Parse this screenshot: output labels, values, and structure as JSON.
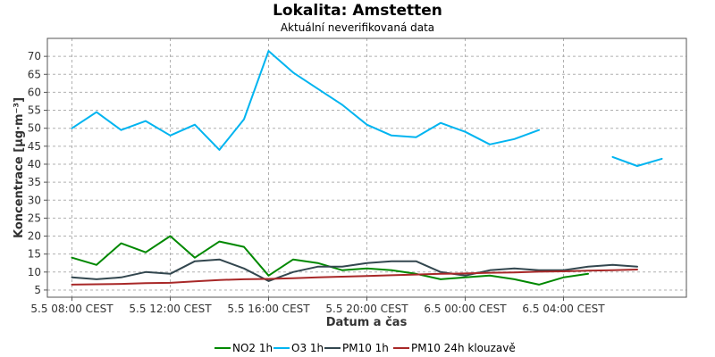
{
  "chart_data": {
    "type": "line",
    "title": "Lokalita: Amstetten",
    "subtitle": "Aktuální neverifikovaná data",
    "xlabel": "Datum a čas",
    "ylabel": "Koncentrace [µg·m⁻³]",
    "ylim": [
      3,
      75
    ],
    "yticks": [
      5,
      10,
      15,
      20,
      25,
      30,
      35,
      40,
      45,
      50,
      55,
      60,
      65,
      70
    ],
    "xlim": [
      "2023-05-05 07:00",
      "2023-05-06 09:00"
    ],
    "xticks": [
      {
        "x": "2023-05-05 08:00",
        "label": "5.5 08:00 CEST"
      },
      {
        "x": "2023-05-05 12:00",
        "label": "5.5 12:00 CEST"
      },
      {
        "x": "2023-05-05 16:00",
        "label": "5.5 16:00 CEST"
      },
      {
        "x": "2023-05-05 20:00",
        "label": "5.5 20:00 CEST"
      },
      {
        "x": "2023-05-06 00:00",
        "label": "6.5 00:00 CEST"
      },
      {
        "x": "2023-05-06 04:00",
        "label": "6.5 04:00 CEST"
      }
    ],
    "grid": true,
    "legend_position": "bottom",
    "x": [
      "2023-05-05 08:00",
      "2023-05-05 09:00",
      "2023-05-05 10:00",
      "2023-05-05 11:00",
      "2023-05-05 12:00",
      "2023-05-05 13:00",
      "2023-05-05 14:00",
      "2023-05-05 15:00",
      "2023-05-05 16:00",
      "2023-05-05 17:00",
      "2023-05-05 18:00",
      "2023-05-05 19:00",
      "2023-05-05 20:00",
      "2023-05-05 21:00",
      "2023-05-05 22:00",
      "2023-05-05 23:00",
      "2023-05-06 00:00",
      "2023-05-06 01:00",
      "2023-05-06 02:00",
      "2023-05-06 03:00",
      "2023-05-06 04:00",
      "2023-05-06 05:00",
      "2023-05-06 06:00",
      "2023-05-06 07:00",
      "2023-05-06 08:00"
    ],
    "series": [
      {
        "name": "NO2 1h",
        "color": "#008800",
        "values": [
          14,
          12,
          18,
          15.5,
          20,
          14,
          18.5,
          17,
          9,
          13.5,
          12.5,
          10.5,
          11,
          10.5,
          9.5,
          8,
          8.5,
          9,
          8,
          6.5,
          8.5,
          9.5,
          null,
          null,
          null
        ]
      },
      {
        "name": "O3 1h",
        "color": "#00b4f0",
        "values": [
          50,
          54.5,
          49.5,
          52,
          48,
          51,
          44,
          52.5,
          71.5,
          65.5,
          61,
          56.5,
          51,
          48,
          47.5,
          51.5,
          49,
          45.5,
          47,
          49.5,
          null,
          null,
          42,
          39.5,
          41.5
        ]
      },
      {
        "name": "PM10 1h",
        "color": "#33474f",
        "values": [
          8.5,
          8,
          8.5,
          10,
          9.5,
          13,
          13.5,
          11,
          7.5,
          10,
          11.5,
          11.5,
          12.5,
          13,
          13,
          10,
          9,
          10.5,
          11,
          10.5,
          10.5,
          11.5,
          12,
          11.5,
          null
        ]
      },
      {
        "name": "PM10 24h klouzavě",
        "color": "#a82828",
        "values": [
          6.5,
          6.6,
          6.7,
          6.9,
          7,
          7.4,
          7.8,
          8,
          8.1,
          8.3,
          8.5,
          8.7,
          8.9,
          9.1,
          9.3,
          9.5,
          9.6,
          9.8,
          9.9,
          10.1,
          10.2,
          10.4,
          10.5,
          10.7,
          null
        ]
      }
    ]
  }
}
